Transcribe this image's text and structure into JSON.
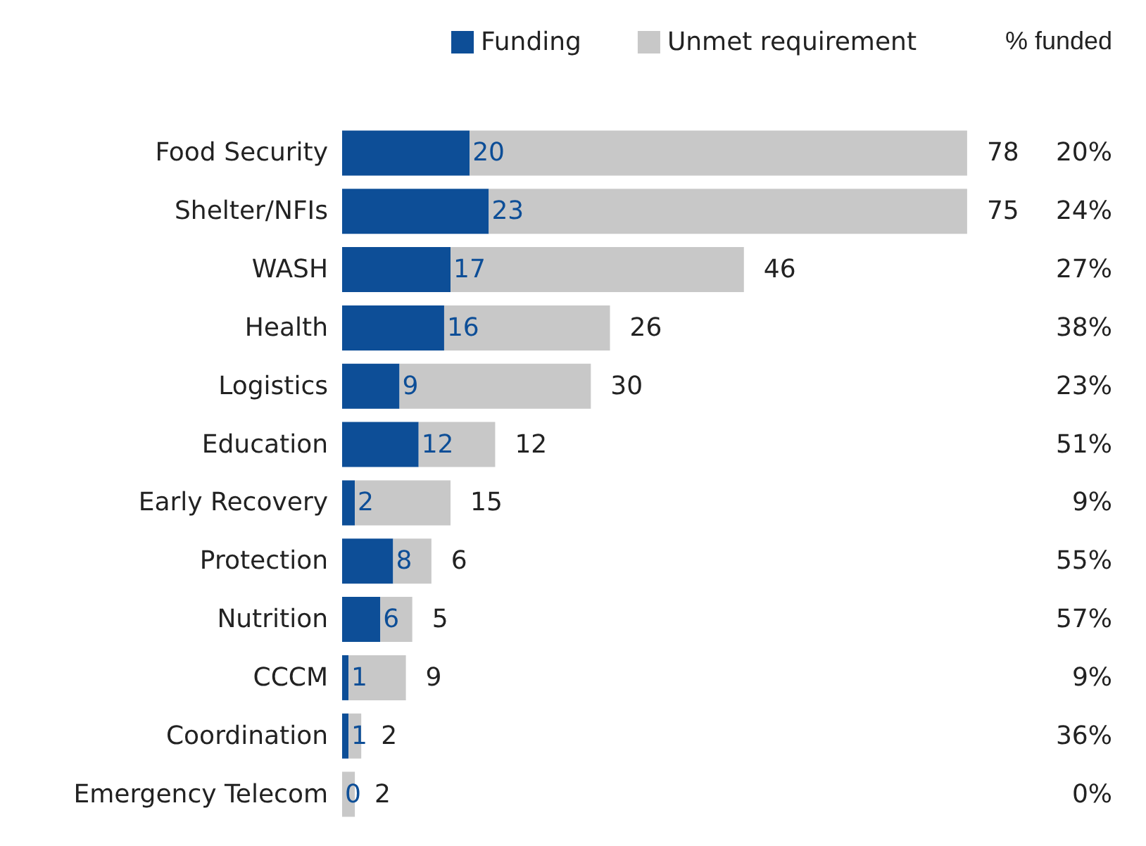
{
  "chart_data": {
    "type": "bar",
    "orientation": "horizontal",
    "stacked": true,
    "data_labels": true,
    "legend": "top right",
    "categories": [
      "Food Security",
      "Shelter/NFIs",
      "WASH",
      "Health",
      "Logistics",
      "Education",
      "Early Recovery",
      "Protection",
      "Nutrition",
      "CCCM",
      "Coordination",
      "Emergency Telecom"
    ],
    "series": [
      {
        "name": "Funding",
        "color": "#0d4e97",
        "values": [
          20,
          23,
          17,
          16,
          9,
          12,
          2,
          8,
          6,
          1,
          1,
          0
        ]
      },
      {
        "name": "Unmet requirement",
        "color": "#c8c8c8",
        "values": [
          78,
          75,
          46,
          26,
          30,
          12,
          15,
          6,
          5,
          9,
          2,
          2
        ]
      }
    ],
    "annotations": [
      "% funded",
      "20%",
      "24%",
      "27%",
      "38%",
      "23%",
      "51%",
      "9%",
      "55%",
      "57%",
      "9%",
      "36%",
      "0%"
    ]
  }
}
